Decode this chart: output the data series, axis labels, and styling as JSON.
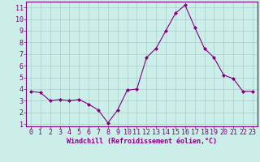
{
  "x": [
    0,
    1,
    2,
    3,
    4,
    5,
    6,
    7,
    8,
    9,
    10,
    11,
    12,
    13,
    14,
    15,
    16,
    17,
    18,
    19,
    20,
    21,
    22,
    23
  ],
  "y": [
    3.8,
    3.7,
    3.0,
    3.1,
    3.0,
    3.1,
    2.7,
    2.2,
    1.1,
    2.2,
    3.9,
    4.0,
    6.7,
    7.5,
    9.0,
    10.5,
    11.2,
    9.3,
    7.5,
    6.7,
    5.2,
    4.9,
    3.8,
    3.8
  ],
  "line_color": "#800080",
  "marker": "D",
  "marker_size": 2.0,
  "bg_color": "#cceee8",
  "grid_color": "#aacccc",
  "axis_color": "#800080",
  "xlabel": "Windchill (Refroidissement éolien,°C)",
  "xlabel_fontsize": 6.0,
  "tick_fontsize": 6.0,
  "ylim": [
    0.8,
    11.5
  ],
  "xlim": [
    -0.5,
    23.5
  ],
  "yticks": [
    1,
    2,
    3,
    4,
    5,
    6,
    7,
    8,
    9,
    10,
    11
  ],
  "xticks": [
    0,
    1,
    2,
    3,
    4,
    5,
    6,
    7,
    8,
    9,
    10,
    11,
    12,
    13,
    14,
    15,
    16,
    17,
    18,
    19,
    20,
    21,
    22,
    23
  ]
}
